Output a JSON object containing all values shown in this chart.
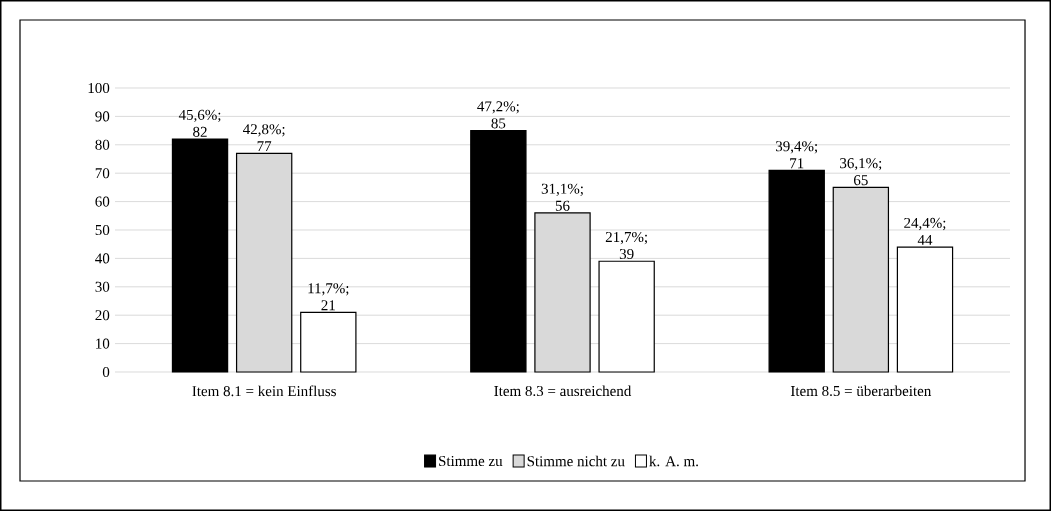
{
  "chart_data": {
    "type": "bar",
    "categories": [
      "Item 8.1 = kein Einfluss",
      "Item 8.3 = ausreichend",
      "Item 8.5 = überarbeiten"
    ],
    "series": [
      {
        "name": "Stimme zu",
        "color": "#000000",
        "values": [
          82,
          85,
          71
        ],
        "value_labels": [
          "45,6%; 82",
          "47,2%; 85",
          "39,4%; 71"
        ]
      },
      {
        "name": "Stimme nicht zu",
        "color": "#d9d9d9",
        "values": [
          77,
          56,
          65
        ],
        "value_labels": [
          "42,8%; 77",
          "31,1%; 56",
          "36,1%; 65"
        ]
      },
      {
        "name": "k. A. m.",
        "color": "#ffffff",
        "values": [
          21,
          39,
          44
        ],
        "value_labels": [
          "11,7%; 21",
          "21,7%; 39",
          "24,4%; 44"
        ]
      }
    ],
    "ylim": [
      0,
      100
    ],
    "yticks": [
      0,
      10,
      20,
      30,
      40,
      50,
      60,
      70,
      80,
      90,
      100
    ],
    "grid": "y",
    "legend": "bottom"
  }
}
